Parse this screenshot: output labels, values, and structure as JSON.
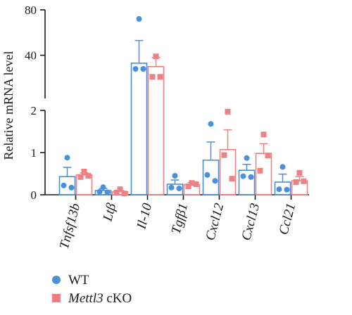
{
  "chart_data": {
    "type": "bar",
    "ylabel": "Relative mRNA level",
    "y_ticks_lower": [
      "0",
      "1",
      "2"
    ],
    "y_ticks_upper": [
      "40",
      "80"
    ],
    "ylim": [
      0,
      80
    ],
    "broken_axis": {
      "lower": [
        0,
        2
      ],
      "upper": [
        2,
        80
      ]
    },
    "categories": [
      "Tnfsf13b",
      "Ltβ",
      "Il-10",
      "Tgfβ1",
      "Cxcl12",
      "Cxcl13",
      "Ccl21"
    ],
    "series": [
      {
        "name": "WT",
        "color": "#4a90d9",
        "values": [
          0.43,
          0.1,
          33,
          0.25,
          0.82,
          0.58,
          0.3
        ],
        "errors": [
          0.22,
          0.05,
          20,
          0.1,
          0.43,
          0.14,
          0.19
        ],
        "points": [
          [
            0.88,
            0.22,
            0.17
          ],
          [
            0.18,
            0.07,
            0.06
          ],
          [
            72,
            28,
            28
          ],
          [
            0.45,
            0.17,
            0.15
          ],
          [
            1.68,
            0.47,
            0.33
          ],
          [
            0.87,
            0.44,
            0.42
          ],
          [
            0.66,
            0.13,
            0.12
          ]
        ]
      },
      {
        "name": "Mettl3 cKO",
        "color": "#ee8183",
        "values": [
          0.47,
          0.07,
          30,
          0.24,
          1.07,
          0.98,
          0.33
        ],
        "errors": [
          0.05,
          0.03,
          8,
          0.05,
          0.47,
          0.23,
          0.1
        ],
        "points": [
          [
            0.55,
            0.42,
            0.45
          ],
          [
            0.13,
            0.05,
            0.03
          ],
          [
            39,
            21,
            21
          ],
          [
            0.28,
            0.2,
            0.25
          ],
          [
            1.97,
            0.94,
            0.38
          ],
          [
            1.43,
            0.57,
            0.93
          ],
          [
            0.52,
            0.3,
            0.32
          ]
        ]
      }
    ],
    "legend": {
      "position": "bottom-left",
      "items": [
        {
          "marker": "circle",
          "color": "#4a90d9",
          "label_plain": "WT",
          "label_italic": ""
        },
        {
          "marker": "square",
          "color": "#ee8183",
          "label_plain": " cKO",
          "label_italic": "Mettl3"
        }
      ]
    }
  }
}
